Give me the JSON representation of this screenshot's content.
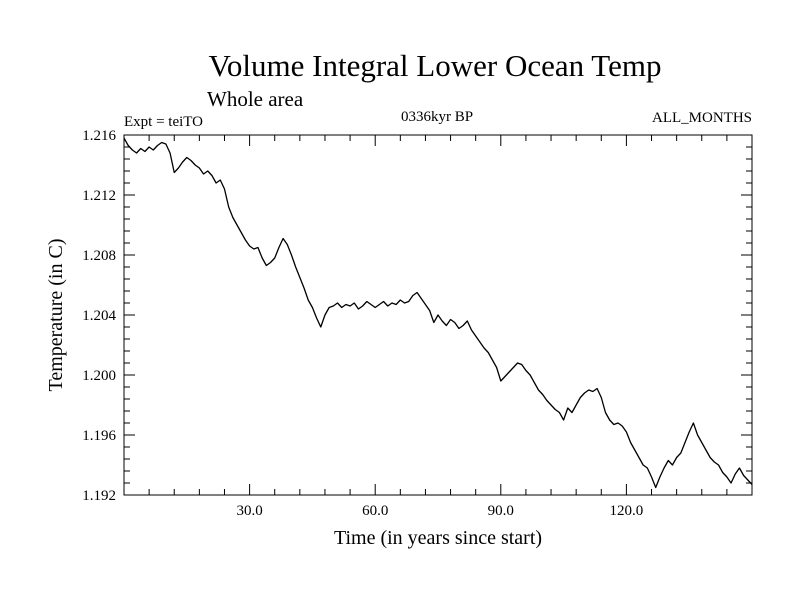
{
  "chart_data": {
    "type": "line",
    "title": "Volume Integral Lower Ocean Temp",
    "subtitle": "Whole area",
    "experiment_label": "Expt = teiTO",
    "period_label": "0336kyr BP",
    "months_label": "ALL_MONTHS",
    "xlabel": "Time (in years since start)",
    "ylabel": "Temperature (in C)",
    "xlim": [
      0,
      150
    ],
    "ylim": [
      1.192,
      1.216
    ],
    "x_ticks": [
      30,
      60,
      90,
      120
    ],
    "x_tick_labels": [
      "30.0",
      "60.0",
      "90.0",
      "120.0"
    ],
    "y_ticks": [
      1.192,
      1.196,
      1.2,
      1.204,
      1.208,
      1.212,
      1.216
    ],
    "y_tick_labels": [
      "1.192",
      "1.196",
      "1.200",
      "1.204",
      "1.208",
      "1.212",
      "1.216"
    ],
    "series": [
      {
        "name": "Volume integral lower ocean temperature",
        "color": "#000000",
        "points": [
          [
            0,
            1.2158
          ],
          [
            1,
            1.2153
          ],
          [
            2,
            1.215
          ],
          [
            3,
            1.2148
          ],
          [
            4,
            1.2151
          ],
          [
            5,
            1.2149
          ],
          [
            6,
            1.2152
          ],
          [
            7,
            1.215
          ],
          [
            8,
            1.2153
          ],
          [
            9,
            1.2155
          ],
          [
            10,
            1.2154
          ],
          [
            11,
            1.2148
          ],
          [
            12,
            1.2135
          ],
          [
            13,
            1.2138
          ],
          [
            14,
            1.2142
          ],
          [
            15,
            1.2145
          ],
          [
            16,
            1.2143
          ],
          [
            17,
            1.214
          ],
          [
            18,
            1.2138
          ],
          [
            19,
            1.2134
          ],
          [
            20,
            1.2136
          ],
          [
            21,
            1.2133
          ],
          [
            22,
            1.2128
          ],
          [
            23,
            1.213
          ],
          [
            24,
            1.2124
          ],
          [
            25,
            1.2112
          ],
          [
            26,
            1.2105
          ],
          [
            27,
            1.21
          ],
          [
            28,
            1.2095
          ],
          [
            29,
            1.209
          ],
          [
            30,
            1.2086
          ],
          [
            31,
            1.2084
          ],
          [
            32,
            1.2085
          ],
          [
            33,
            1.2078
          ],
          [
            34,
            1.2073
          ],
          [
            35,
            1.2075
          ],
          [
            36,
            1.2078
          ],
          [
            37,
            1.2085
          ],
          [
            38,
            1.2091
          ],
          [
            39,
            1.2087
          ],
          [
            40,
            1.208
          ],
          [
            41,
            1.2072
          ],
          [
            42,
            1.2065
          ],
          [
            43,
            1.2058
          ],
          [
            44,
            1.205
          ],
          [
            45,
            1.2045
          ],
          [
            46,
            1.2038
          ],
          [
            47,
            1.2032
          ],
          [
            48,
            1.204
          ],
          [
            49,
            1.2045
          ],
          [
            50,
            1.2046
          ],
          [
            51,
            1.2048
          ],
          [
            52,
            1.2045
          ],
          [
            53,
            1.2047
          ],
          [
            54,
            1.2046
          ],
          [
            55,
            1.2048
          ],
          [
            56,
            1.2044
          ],
          [
            57,
            1.2046
          ],
          [
            58,
            1.2049
          ],
          [
            59,
            1.2047
          ],
          [
            60,
            1.2045
          ],
          [
            61,
            1.2047
          ],
          [
            62,
            1.2049
          ],
          [
            63,
            1.2046
          ],
          [
            64,
            1.2048
          ],
          [
            65,
            1.2047
          ],
          [
            66,
            1.205
          ],
          [
            67,
            1.2048
          ],
          [
            68,
            1.2049
          ],
          [
            69,
            1.2053
          ],
          [
            70,
            1.2055
          ],
          [
            71,
            1.2051
          ],
          [
            72,
            1.2047
          ],
          [
            73,
            1.2043
          ],
          [
            74,
            1.2035
          ],
          [
            75,
            1.204
          ],
          [
            76,
            1.2036
          ],
          [
            77,
            1.2033
          ],
          [
            78,
            1.2037
          ],
          [
            79,
            1.2035
          ],
          [
            80,
            1.2031
          ],
          [
            81,
            1.2033
          ],
          [
            82,
            1.2036
          ],
          [
            83,
            1.203
          ],
          [
            84,
            1.2026
          ],
          [
            85,
            1.2022
          ],
          [
            86,
            1.2018
          ],
          [
            87,
            1.2015
          ],
          [
            88,
            1.201
          ],
          [
            89,
            1.2005
          ],
          [
            90,
            1.1996
          ],
          [
            91,
            1.1999
          ],
          [
            92,
            1.2002
          ],
          [
            93,
            1.2005
          ],
          [
            94,
            1.2008
          ],
          [
            95,
            1.2007
          ],
          [
            96,
            1.2003
          ],
          [
            97,
            1.2
          ],
          [
            98,
            1.1995
          ],
          [
            99,
            1.199
          ],
          [
            100,
            1.1987
          ],
          [
            101,
            1.1983
          ],
          [
            102,
            1.198
          ],
          [
            103,
            1.1977
          ],
          [
            104,
            1.1975
          ],
          [
            105,
            1.197
          ],
          [
            106,
            1.1978
          ],
          [
            107,
            1.1975
          ],
          [
            108,
            1.198
          ],
          [
            109,
            1.1985
          ],
          [
            110,
            1.1988
          ],
          [
            111,
            1.199
          ],
          [
            112,
            1.1989
          ],
          [
            113,
            1.1991
          ],
          [
            114,
            1.1985
          ],
          [
            115,
            1.1975
          ],
          [
            116,
            1.197
          ],
          [
            117,
            1.1967
          ],
          [
            118,
            1.1968
          ],
          [
            119,
            1.1966
          ],
          [
            120,
            1.1962
          ],
          [
            121,
            1.1955
          ],
          [
            122,
            1.195
          ],
          [
            123,
            1.1945
          ],
          [
            124,
            1.194
          ],
          [
            125,
            1.1938
          ],
          [
            126,
            1.1932
          ],
          [
            127,
            1.1925
          ],
          [
            128,
            1.1932
          ],
          [
            129,
            1.1938
          ],
          [
            130,
            1.1943
          ],
          [
            131,
            1.194
          ],
          [
            132,
            1.1945
          ],
          [
            133,
            1.1948
          ],
          [
            134,
            1.1955
          ],
          [
            135,
            1.1962
          ],
          [
            136,
            1.1968
          ],
          [
            137,
            1.196
          ],
          [
            138,
            1.1955
          ],
          [
            139,
            1.195
          ],
          [
            140,
            1.1945
          ],
          [
            141,
            1.1942
          ],
          [
            142,
            1.194
          ],
          [
            143,
            1.1935
          ],
          [
            144,
            1.1932
          ],
          [
            145,
            1.1928
          ],
          [
            146,
            1.1934
          ],
          [
            147,
            1.1938
          ],
          [
            148,
            1.1933
          ],
          [
            149,
            1.193
          ],
          [
            150,
            1.1927
          ]
        ]
      }
    ]
  }
}
